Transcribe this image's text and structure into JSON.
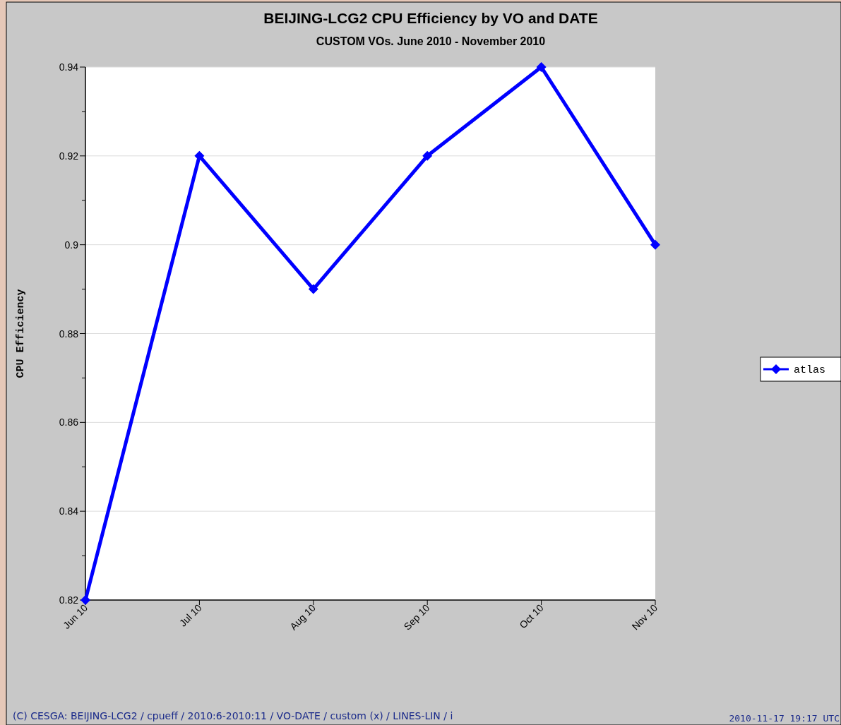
{
  "chart_data": {
    "type": "line",
    "title": "BEIJING-LCG2 CPU Efficiency by VO and DATE",
    "subtitle": "CUSTOM VOs. June 2010 - November 2010",
    "ylabel": "CPU Efficiency",
    "categories": [
      "Jun 10",
      "Jul 10",
      "Aug 10",
      "Sep 10",
      "Oct 10",
      "Nov 10"
    ],
    "series": [
      {
        "name": "atlas",
        "color": "#0000ff",
        "values": [
          0.82,
          0.92,
          0.89,
          0.92,
          0.94,
          0.9
        ]
      }
    ],
    "ylim": [
      0.82,
      0.94
    ],
    "yticks": [
      0.82,
      {
        "value": 0.83,
        "label": null
      },
      0.84,
      {
        "value": 0.85,
        "label": null
      },
      0.86,
      {
        "value": 0.87,
        "label": null
      },
      0.88,
      {
        "value": 0.89,
        "label": null
      },
      {
        "value": 0.9,
        "label": "0.9"
      },
      {
        "value": 0.91,
        "label": null
      },
      0.92,
      {
        "value": 0.93,
        "label": null
      },
      0.94
    ],
    "grid": "y",
    "legend": "right",
    "marker": "diamond",
    "line_style": "solid",
    "annotations": [
      "(C) CESGA: BEIJING-LCG2 / cpueff / 2010:6-2010:11 / VO-DATE / custom (x) / LINES-LIN / i",
      "2010-11-17 19:17 UTC"
    ]
  }
}
